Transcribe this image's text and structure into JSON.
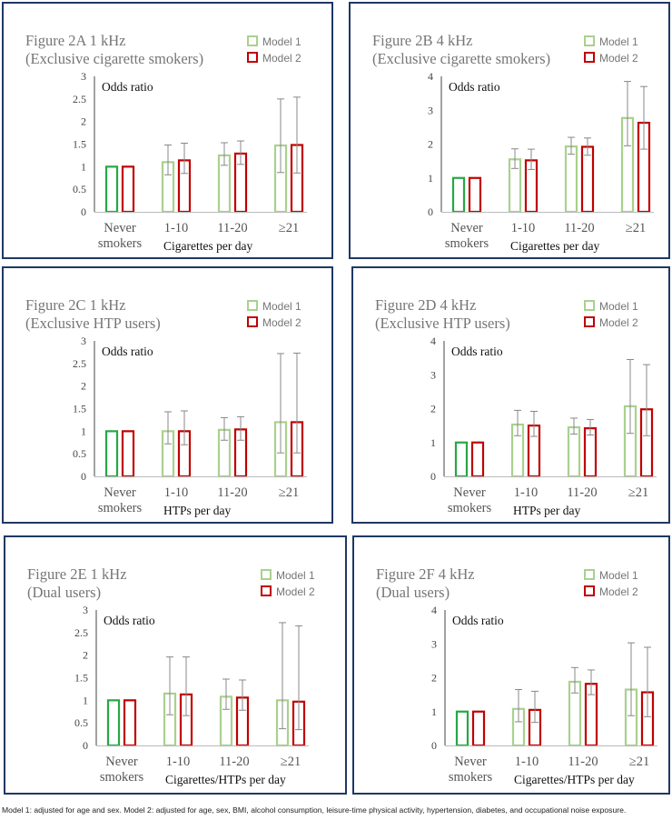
{
  "legend": {
    "model1": "Model 1",
    "model2": "Model 2"
  },
  "colors": {
    "model1": "#a9d18e",
    "model2": "#c00000",
    "never_model1": "#27a745",
    "axis": "#444444",
    "title": "#767676",
    "border": "#1f3864"
  },
  "footnote": "Model 1: adjusted for age and sex. Model 2: adjusted for age, sex, BMI, alcohol consumption, leisure-time physical activity, hypertension, diabetes, and occupational noise exposure.",
  "chart_data": [
    {
      "type": "bar",
      "title_line1": "Figure 2A 1 kHz",
      "title_line2": "(Exclusive cigarette smokers)",
      "ylabel": "Odds ratio",
      "xlabel": "Cigarettes per day",
      "categories": [
        [
          "Never",
          "smokers"
        ],
        [
          "1-10"
        ],
        [
          "11-20"
        ],
        [
          "≥21"
        ]
      ],
      "ylim": [
        0,
        3
      ],
      "yticks": [
        "0",
        "0.5",
        "1",
        "1.5",
        "2",
        "2.5",
        "3"
      ],
      "series": [
        {
          "name": "Model 1",
          "values": [
            1.0,
            1.1,
            1.25,
            1.47
          ],
          "lower": [
            1.0,
            0.82,
            1.03,
            0.87
          ],
          "upper": [
            1.0,
            1.48,
            1.53,
            2.5
          ]
        },
        {
          "name": "Model 2",
          "values": [
            1.0,
            1.14,
            1.29,
            1.48
          ],
          "lower": [
            1.0,
            0.85,
            1.05,
            0.86
          ],
          "upper": [
            1.0,
            1.52,
            1.57,
            2.54
          ]
        }
      ]
    },
    {
      "type": "bar",
      "title_line1": "Figure 2B 4 kHz",
      "title_line2": "(Exclusive cigarette smokers)",
      "ylabel": "Odds ratio",
      "xlabel": "Cigarettes per day",
      "categories": [
        [
          "Never",
          "smokers"
        ],
        [
          "1-10"
        ],
        [
          "11-20"
        ],
        [
          "≥21"
        ]
      ],
      "ylim": [
        0,
        4
      ],
      "yticks": [
        "0",
        "1",
        "2",
        "3",
        "4"
      ],
      "series": [
        {
          "name": "Model 1",
          "values": [
            1.0,
            1.55,
            1.93,
            2.77
          ],
          "lower": [
            1.0,
            1.28,
            1.7,
            1.95
          ],
          "upper": [
            1.0,
            1.86,
            2.2,
            3.85
          ]
        },
        {
          "name": "Model 2",
          "values": [
            1.0,
            1.52,
            1.92,
            2.63
          ],
          "lower": [
            1.0,
            1.25,
            1.67,
            1.85
          ],
          "upper": [
            1.0,
            1.85,
            2.18,
            3.7
          ]
        }
      ]
    },
    {
      "type": "bar",
      "title_line1": "Figure 2C 1 kHz",
      "title_line2": "(Exclusive HTP users)",
      "ylabel": "Odds ratio",
      "xlabel": "HTPs per day",
      "categories": [
        [
          "Never",
          "smokers"
        ],
        [
          "1-10"
        ],
        [
          "11-20"
        ],
        [
          "≥21"
        ]
      ],
      "ylim": [
        0,
        3
      ],
      "yticks": [
        "0",
        "0.5",
        "1",
        "1.5",
        "2",
        "2.5",
        "3"
      ],
      "series": [
        {
          "name": "Model 1",
          "values": [
            1.0,
            1.0,
            1.03,
            1.2
          ],
          "lower": [
            1.0,
            0.72,
            0.8,
            0.52
          ],
          "upper": [
            1.0,
            1.43,
            1.3,
            2.72
          ]
        },
        {
          "name": "Model 2",
          "values": [
            1.0,
            1.0,
            1.04,
            1.2
          ],
          "lower": [
            1.0,
            0.7,
            0.8,
            0.52
          ],
          "upper": [
            1.0,
            1.45,
            1.32,
            2.73
          ]
        }
      ]
    },
    {
      "type": "bar",
      "title_line1": "Figure 2D 4 kHz",
      "title_line2": "(Exclusive HTP users)",
      "ylabel": "Odds ratio",
      "xlabel": "HTPs per day",
      "categories": [
        [
          "Never",
          "smokers"
        ],
        [
          "1-10"
        ],
        [
          "11-20"
        ],
        [
          "≥21"
        ]
      ],
      "ylim": [
        0,
        4
      ],
      "yticks": [
        "0",
        "1",
        "2",
        "3",
        "4"
      ],
      "series": [
        {
          "name": "Model 1",
          "values": [
            1.0,
            1.53,
            1.45,
            2.07
          ],
          "lower": [
            1.0,
            1.2,
            1.25,
            1.27
          ],
          "upper": [
            1.0,
            1.95,
            1.72,
            3.45
          ]
        },
        {
          "name": "Model 2",
          "values": [
            1.0,
            1.5,
            1.42,
            1.98
          ],
          "lower": [
            1.0,
            1.18,
            1.22,
            1.2
          ],
          "upper": [
            1.0,
            1.92,
            1.68,
            3.3
          ]
        }
      ]
    },
    {
      "type": "bar",
      "title_line1": "Figure 2E 1 kHz",
      "title_line2": "(Dual users)",
      "ylabel": "Odds ratio",
      "xlabel": "Cigarettes/HTPs per day",
      "categories": [
        [
          "Never",
          "smokers"
        ],
        [
          "1-10"
        ],
        [
          "11-20"
        ],
        [
          "≥21"
        ]
      ],
      "ylim": [
        0,
        3
      ],
      "yticks": [
        "0",
        "0.5",
        "1",
        "1.5",
        "2",
        "2.5",
        "3"
      ],
      "series": [
        {
          "name": "Model 1",
          "values": [
            1.0,
            1.15,
            1.08,
            1.0
          ],
          "lower": [
            1.0,
            0.68,
            0.8,
            0.37
          ],
          "upper": [
            1.0,
            1.96,
            1.47,
            2.72
          ]
        },
        {
          "name": "Model 2",
          "values": [
            1.0,
            1.13,
            1.06,
            0.97
          ],
          "lower": [
            1.0,
            0.66,
            0.78,
            0.35
          ],
          "upper": [
            1.0,
            1.96,
            1.45,
            2.65
          ]
        }
      ]
    },
    {
      "type": "bar",
      "title_line1": "Figure 2F 4 kHz",
      "title_line2": "(Dual users)",
      "ylabel": "Odds ratio",
      "xlabel": "Cigarettes/HTPs per day",
      "categories": [
        [
          "Never",
          "smokers"
        ],
        [
          "1-10"
        ],
        [
          "11-20"
        ],
        [
          "≥21"
        ]
      ],
      "ylim": [
        0,
        4
      ],
      "yticks": [
        "0",
        "1",
        "2",
        "3",
        "4"
      ],
      "series": [
        {
          "name": "Model 1",
          "values": [
            1.0,
            1.08,
            1.88,
            1.65
          ],
          "lower": [
            1.0,
            0.7,
            1.55,
            0.88
          ],
          "upper": [
            1.0,
            1.65,
            2.3,
            3.03
          ]
        },
        {
          "name": "Model 2",
          "values": [
            1.0,
            1.05,
            1.82,
            1.57
          ],
          "lower": [
            1.0,
            0.68,
            1.5,
            0.85
          ],
          "upper": [
            1.0,
            1.6,
            2.23,
            2.9
          ]
        }
      ]
    }
  ]
}
